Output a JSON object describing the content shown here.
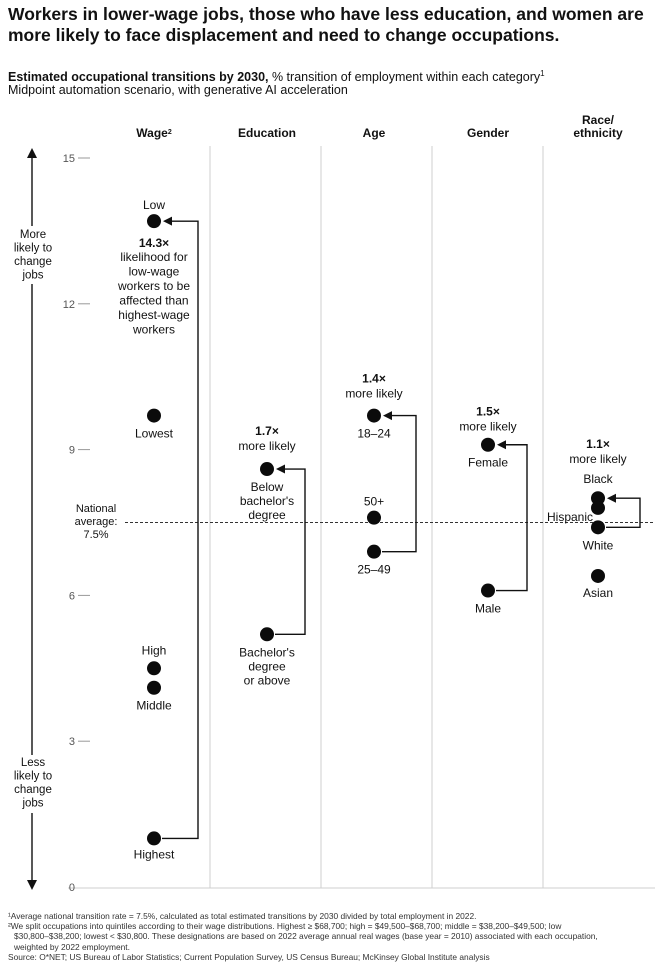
{
  "title": "Workers in lower-wage jobs, those who have less education, and women are more likely to face displacement and need to change occupations.",
  "subtitle_bold": "Estimated occupational transitions by 2030,",
  "subtitle_rest": " % transition of employment within each category",
  "subtitle_sup": "1",
  "subtitle2": "Midpoint automation scenario, with generative AI acceleration",
  "chart_data": {
    "type": "scatter",
    "ylim": [
      0,
      15
    ],
    "yticks": [
      "15",
      "12",
      "9",
      "6",
      "3",
      "0"
    ],
    "ytick_values": [
      15,
      12,
      9,
      6,
      3,
      0
    ],
    "axis_top_label": [
      "More",
      "likely to",
      "change",
      "jobs"
    ],
    "axis_bottom_label": [
      "Less",
      "likely to",
      "change",
      "jobs"
    ],
    "national_average": {
      "value": 7.5,
      "label": [
        "National",
        "average:",
        "7.5%"
      ]
    },
    "groups": [
      {
        "name": "Wage",
        "name_sup": "2",
        "points": [
          {
            "label": "Low",
            "value": 13.7
          },
          {
            "label": "Lowest",
            "value": 9.7
          },
          {
            "label": "High",
            "value": 4.5
          },
          {
            "label": "Middle",
            "value": 4.1
          },
          {
            "label": "Highest",
            "value": 1.0
          }
        ],
        "ratio": "14.3×",
        "ratio_text": [
          "likelihood for",
          "low-wage",
          "workers to be",
          "affected than",
          "highest-wage",
          "workers"
        ]
      },
      {
        "name": "Education",
        "points": [
          {
            "label": "Below bachelor's degree",
            "value": 8.6
          },
          {
            "label": "Bachelor's degree or above",
            "value": 5.2
          }
        ],
        "label_lines": [
          [
            "Below",
            "bachelor's",
            "degree"
          ],
          [
            "Bachelor's",
            "degree",
            "or above"
          ]
        ],
        "ratio": "1.7×",
        "ratio_text": [
          "more likely"
        ]
      },
      {
        "name": "Age",
        "points": [
          {
            "label": "18–24",
            "value": 9.7
          },
          {
            "label": "50+",
            "value": 7.6
          },
          {
            "label": "25–49",
            "value": 6.9
          }
        ],
        "ratio": "1.4×",
        "ratio_text": [
          "more likely"
        ]
      },
      {
        "name": "Gender",
        "points": [
          {
            "label": "Female",
            "value": 9.1
          },
          {
            "label": "Male",
            "value": 6.1
          }
        ],
        "ratio": "1.5×",
        "ratio_text": [
          "more likely"
        ]
      },
      {
        "name": "Race/ ethnicity",
        "name_lines": [
          "Race/",
          "ethnicity"
        ],
        "points": [
          {
            "label": "Black",
            "value": 8.0
          },
          {
            "label": "Hispanic",
            "value": 7.8
          },
          {
            "label": "White",
            "value": 7.4
          },
          {
            "label": "Asian",
            "value": 6.4
          }
        ],
        "ratio": "1.1×",
        "ratio_text": [
          "more likely"
        ]
      }
    ]
  },
  "footnotes": [
    "¹Average national transition rate = 7.5%, calculated as total estimated transitions by 2030 divided by total employment in 2022.",
    "²We split occupations into quintiles according to their wage distributions. Highest ≥ $68,700; high = $49,500–$68,700; middle = $38,200–$49,500; low",
    "$30,800–$38,200; lowest < $30,800. These designations are based on 2022 average annual real wages (base year = 2010) associated with each occupation,",
    "weighted by 2022 employment.",
    "Source: O*NET; US Bureau of Labor Statistics; Current Population Survey, US Census Bureau; McKinsey Global Institute analysis"
  ]
}
